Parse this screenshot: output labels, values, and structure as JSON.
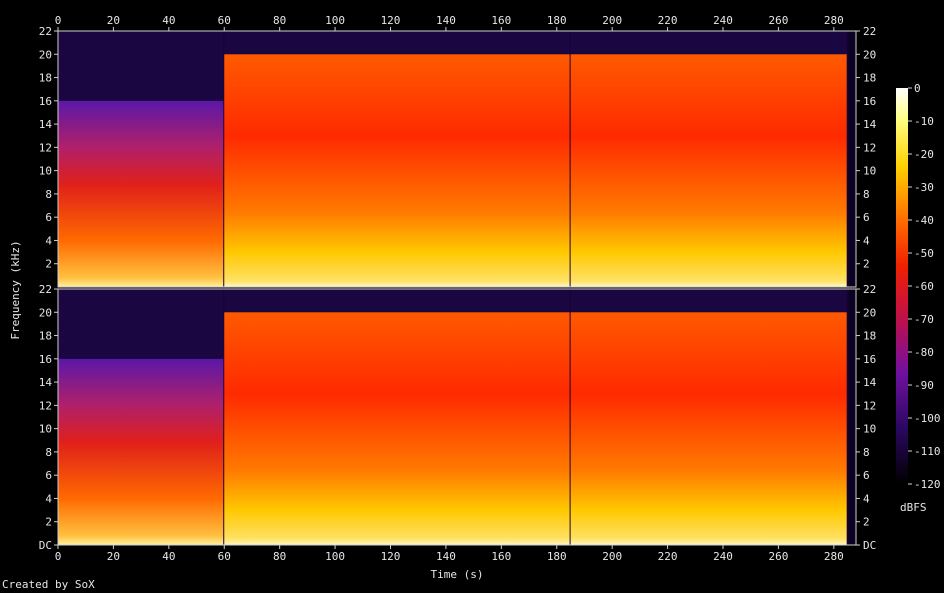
{
  "chart_data": {
    "type": "heatmap",
    "xlabel": "Time (s)",
    "ylabel": "Frequency (kHz)",
    "x_ticks": [
      "0",
      "20",
      "40",
      "60",
      "80",
      "100",
      "120",
      "140",
      "160",
      "180",
      "200",
      "220",
      "240",
      "260",
      "280"
    ],
    "xlim": [
      0,
      288
    ],
    "y_ticks_top": [
      "22",
      "20",
      "18",
      "16",
      "14",
      "12",
      "10",
      "8",
      "6",
      "4",
      "2"
    ],
    "y_ticks_bottom": [
      "22",
      "20",
      "18",
      "16",
      "14",
      "12",
      "10",
      "8",
      "6",
      "4",
      "2",
      "DC"
    ],
    "ylim_khz": [
      0,
      22
    ],
    "channels": 2,
    "colorbar": {
      "label": "dBFS",
      "ticks": [
        "0",
        "-10",
        "-20",
        "-30",
        "-40",
        "-50",
        "-60",
        "-70",
        "-80",
        "-90",
        "-100",
        "-110",
        "-120"
      ],
      "range": [
        -120,
        0
      ]
    },
    "segments": [
      {
        "start_s": 0,
        "end_s": 60,
        "cutoff_khz": 16
      },
      {
        "start_s": 60,
        "end_s": 185,
        "cutoff_khz": 20
      },
      {
        "start_s": 185,
        "end_s": 285,
        "cutoff_khz": 20
      }
    ]
  },
  "footer": {
    "credit": "Created by SoX"
  },
  "colors": {
    "background": "#000000",
    "text": "#e6e6e6"
  }
}
